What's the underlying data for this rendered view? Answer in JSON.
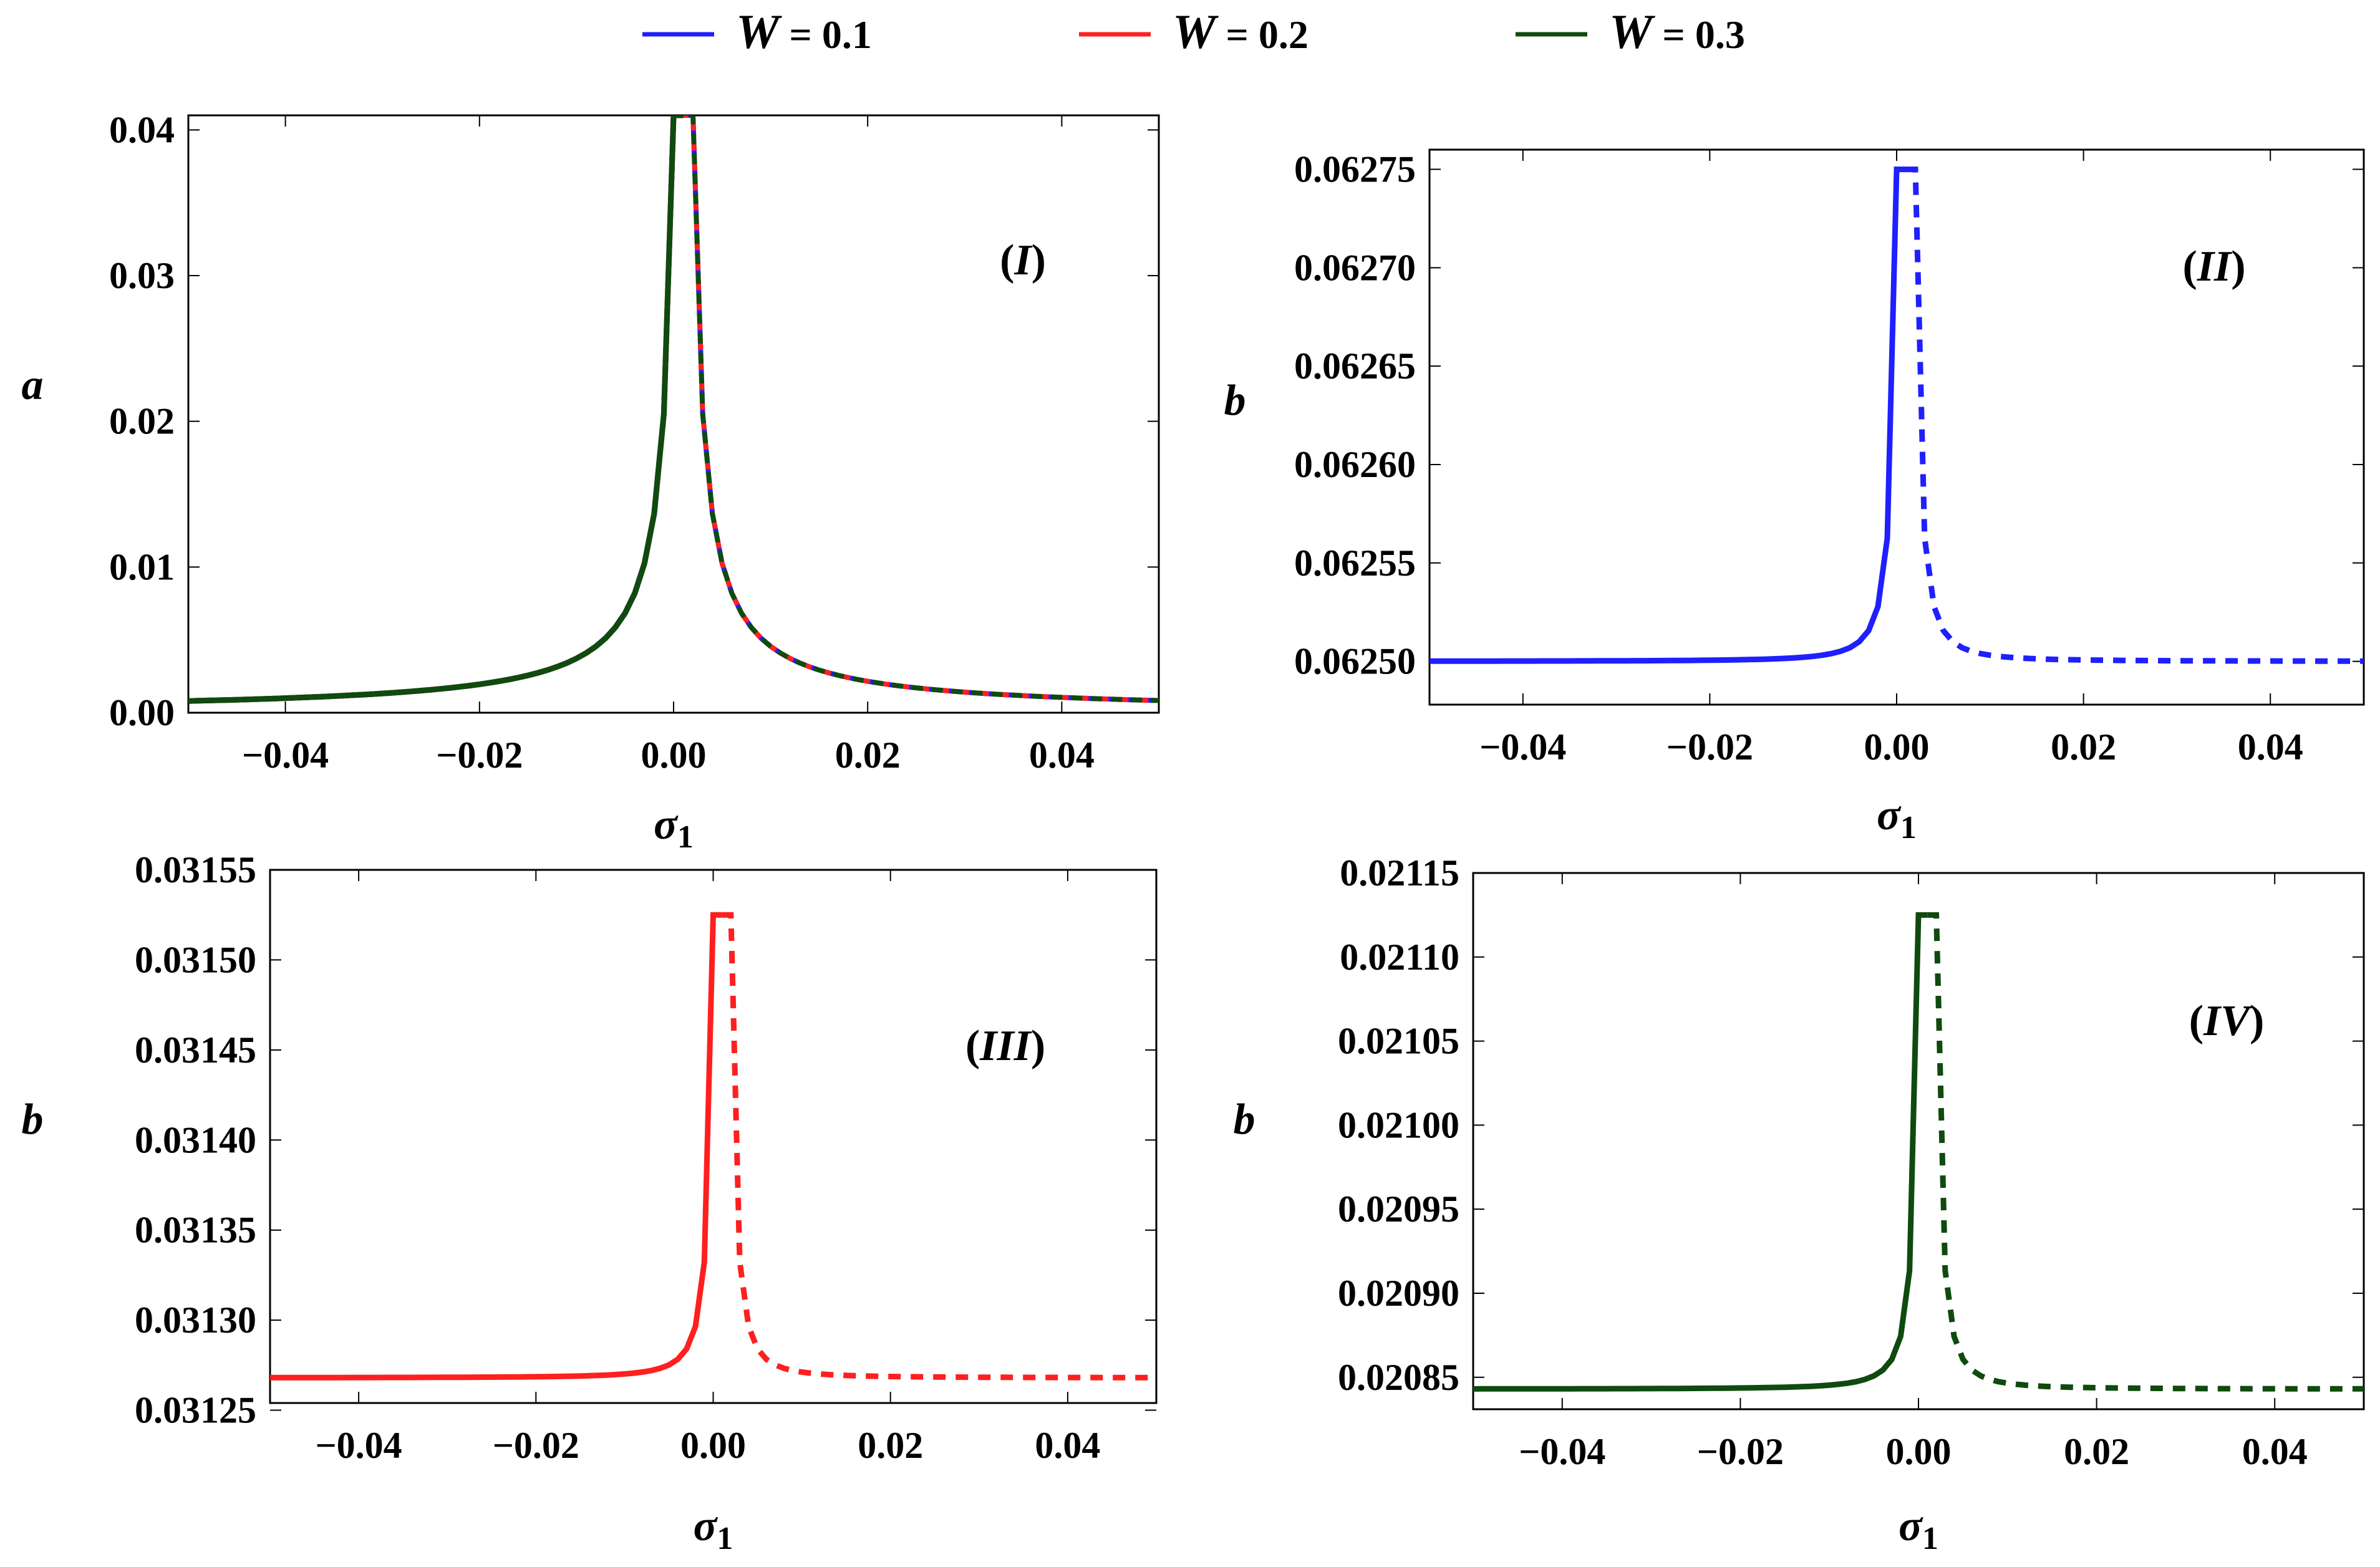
{
  "colors": {
    "w01": "#1f1fff",
    "w02": "#ff1f1f",
    "w03": "#0f4a0f"
  },
  "legend": [
    {
      "label_var": "W",
      "label_rest": " = 0.1",
      "color": "#1f1fff"
    },
    {
      "label_var": "W",
      "label_rest": " = 0.2",
      "color": "#ff1f1f"
    },
    {
      "label_var": "W",
      "label_rest": " = 0.3",
      "color": "#0f4a0f"
    }
  ],
  "chart_data": [
    {
      "type": "line",
      "panel_label_inner": "I",
      "xlabel": "σ",
      "xlabel_sub": "1",
      "ylabel": "a",
      "xlim": [
        -0.05,
        0.05
      ],
      "ylim": [
        0,
        0.041
      ],
      "xticks": [
        -0.04,
        -0.02,
        0.0,
        0.02,
        0.04
      ],
      "xtick_labels": [
        "−0.04",
        "−0.02",
        "0.00",
        "0.02",
        "0.04"
      ],
      "yticks": [
        0.0,
        0.01,
        0.02,
        0.03,
        0.04
      ],
      "ytick_labels": [
        "0.00",
        "0.01",
        "0.02",
        "0.03",
        "0.04"
      ],
      "series": [
        {
          "name": "W = 0.1",
          "color": "#1f1fff",
          "base": 0,
          "scale": 1
        },
        {
          "name": "W = 0.2",
          "color": "#ff1f1f",
          "base": 0,
          "scale": 1
        },
        {
          "name": "W = 0.3",
          "color": "#0f4a0f",
          "base": 0,
          "scale": 1
        }
      ],
      "notes": "solid branch for σ1 < 0.001 (stable), dashed branch for σ1 > 0.001 (unstable); peak ≈ 0.041 at σ1 ≈ 0.001"
    },
    {
      "type": "line",
      "panel_label_inner": "II",
      "xlabel": "σ",
      "xlabel_sub": "1",
      "ylabel": "b",
      "xlim": [
        -0.05,
        0.05
      ],
      "ylim": [
        0.062478,
        0.06276
      ],
      "xticks": [
        -0.04,
        -0.02,
        0.0,
        0.02,
        0.04
      ],
      "xtick_labels": [
        "−0.04",
        "−0.02",
        "0.00",
        "0.02",
        "0.04"
      ],
      "yticks": [
        0.0625,
        0.06255,
        0.0626,
        0.06265,
        0.0627,
        0.06275
      ],
      "ytick_labels": [
        "0.06250",
        "0.06255",
        "0.06260",
        "0.06265",
        "0.06270",
        "0.06275"
      ],
      "series": [
        {
          "name": "W = 0.1",
          "color": "#1f1fff",
          "base": 0.0625,
          "peak": 0.06275
        }
      ]
    },
    {
      "type": "line",
      "panel_label_inner": "III",
      "xlabel": "σ",
      "xlabel_sub": "1",
      "ylabel": "b",
      "xlim": [
        -0.05,
        0.05
      ],
      "ylim": [
        0.031254,
        0.03155
      ],
      "xticks": [
        -0.04,
        -0.02,
        0.0,
        0.02,
        0.04
      ],
      "xtick_labels": [
        "−0.04",
        "−0.02",
        "0.00",
        "0.02",
        "0.04"
      ],
      "yticks": [
        0.03125,
        0.0313,
        0.03135,
        0.0314,
        0.03145,
        0.0315,
        0.03155
      ],
      "ytick_labels": [
        "0.03125",
        "0.03130",
        "0.03135",
        "0.03140",
        "0.03145",
        "0.03150",
        "0.03155"
      ],
      "series": [
        {
          "name": "W = 0.2",
          "color": "#ff1f1f",
          "base": 0.031268,
          "peak": 0.031525
        }
      ]
    },
    {
      "type": "line",
      "panel_label_inner": "IV",
      "xlabel": "σ",
      "xlabel_sub": "1",
      "ylabel": "b",
      "xlim": [
        -0.05,
        0.05
      ],
      "ylim": [
        0.020831,
        0.02115
      ],
      "xticks": [
        -0.04,
        -0.02,
        0.0,
        0.02,
        0.04
      ],
      "xtick_labels": [
        "−0.04",
        "−0.02",
        "0.00",
        "0.02",
        "0.04"
      ],
      "yticks": [
        0.02085,
        0.0209,
        0.02095,
        0.021,
        0.02105,
        0.0211,
        0.02115
      ],
      "ytick_labels": [
        "0.02085",
        "0.02090",
        "0.02095",
        "0.02100",
        "0.02105",
        "0.02110",
        "0.02115"
      ],
      "series": [
        {
          "name": "W = 0.3",
          "color": "#0f4a0f",
          "base": 0.020843,
          "peak": 0.021125
        }
      ]
    }
  ]
}
